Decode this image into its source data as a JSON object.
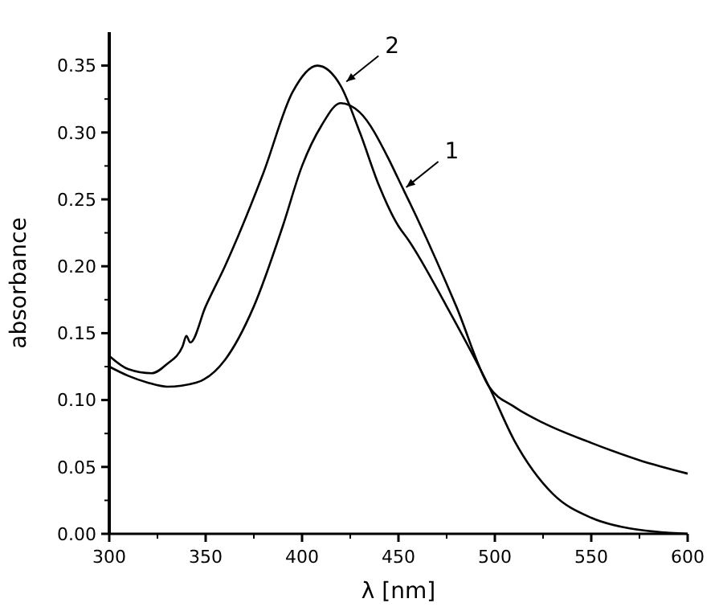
{
  "chart_data": {
    "type": "line",
    "xlabel": "λ [nm]",
    "ylabel": "absorbance",
    "xlim": [
      300,
      600
    ],
    "ylim": [
      0,
      0.375
    ],
    "xticks": [
      300,
      350,
      400,
      450,
      500,
      550,
      600
    ],
    "yticks": [
      {
        "value": 0,
        "label": "0.00"
      },
      {
        "value": 0.05,
        "label": "0.05"
      },
      {
        "value": 0.1,
        "label": "0.10"
      },
      {
        "value": 0.15,
        "label": "0.15"
      },
      {
        "value": 0.2,
        "label": "0.20"
      },
      {
        "value": 0.25,
        "label": "0.25"
      },
      {
        "value": 0.3,
        "label": "0.30"
      },
      {
        "value": 0.35,
        "label": "0.35"
      }
    ],
    "grid": false,
    "line_style": "solid",
    "series": [
      {
        "color": "#000000",
        "x": [
          300,
          310,
          320,
          330,
          345,
          360,
          375,
          390,
          400,
          410,
          420,
          430,
          445,
          450,
          460,
          480,
          497,
          510,
          525,
          550,
          575,
          600
        ],
        "values": [
          0.125,
          0.118,
          0.113,
          0.11,
          0.113,
          0.13,
          0.17,
          0.23,
          0.275,
          0.305,
          0.322,
          0.315,
          0.28,
          0.265,
          0.235,
          0.17,
          0.11,
          0.095,
          0.083,
          0.068,
          0.055,
          0.045
        ]
      },
      {
        "color": "#000000",
        "x": [
          300,
          310,
          322,
          330,
          338,
          340,
          342,
          350,
          360,
          380,
          395,
          408,
          420,
          430,
          440,
          450,
          455,
          475,
          497,
          510,
          530,
          550,
          570,
          600
        ],
        "values": [
          0.133,
          0.123,
          0.12,
          0.127,
          0.14,
          0.148,
          0.143,
          0.17,
          0.2,
          0.27,
          0.33,
          0.35,
          0.335,
          0.3,
          0.26,
          0.23,
          0.22,
          0.17,
          0.11,
          0.07,
          0.03,
          0.012,
          0.004,
          0
        ]
      }
    ],
    "annotations": [
      {
        "text": "1",
        "x": 454,
        "y": 0.259
      },
      {
        "text": "2",
        "x": 423,
        "y": 0.338
      }
    ]
  }
}
